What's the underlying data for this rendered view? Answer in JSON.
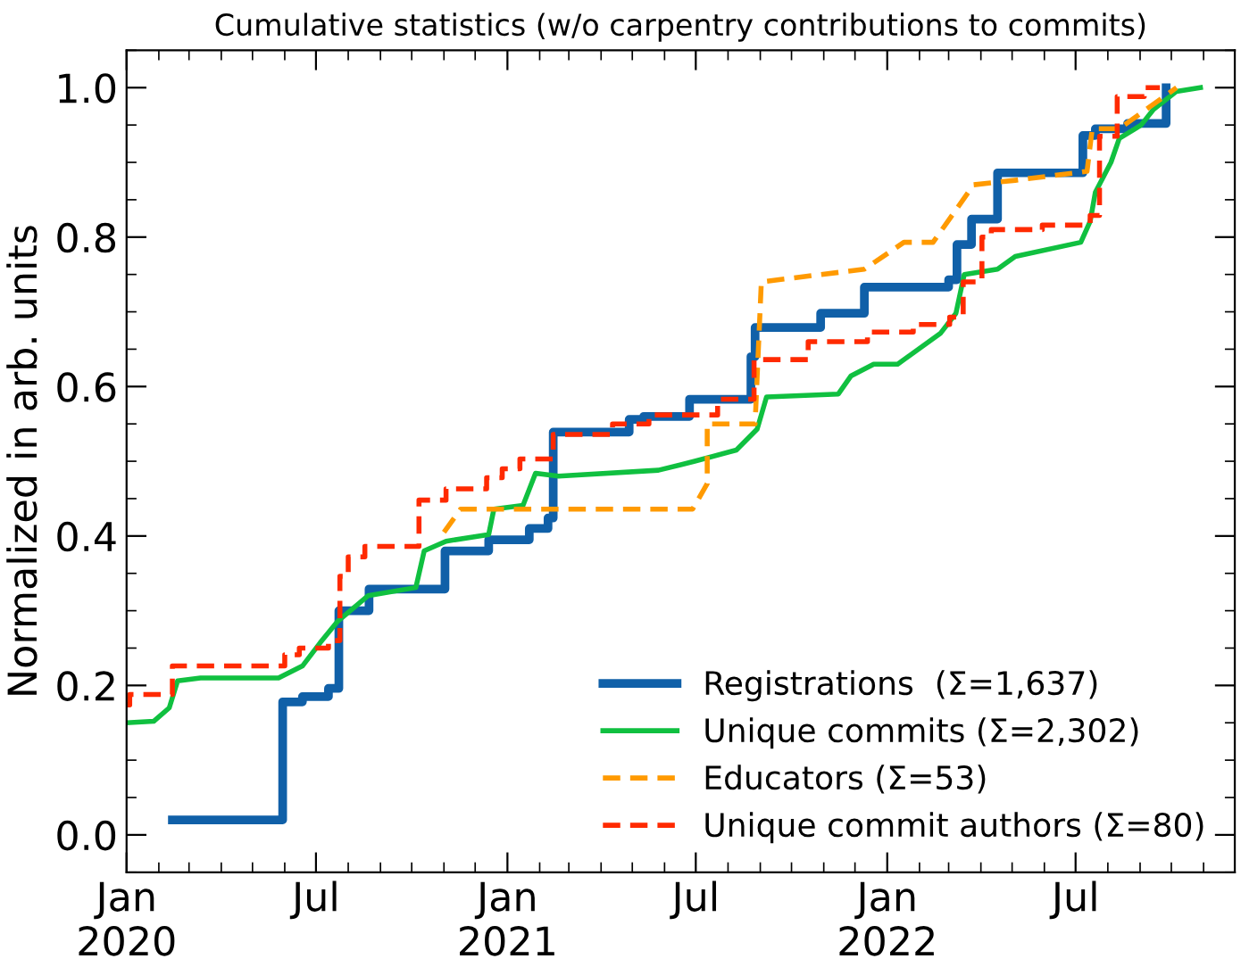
{
  "chart_data": {
    "type": "line",
    "title": "Cumulative statistics (w/o carpentry contributions to commits)",
    "ylabel": "Normalized in arb. units",
    "xlim": [
      "2020-01-01",
      "2022-12-01"
    ],
    "ylim": [
      -0.05,
      1.05
    ],
    "xticks": [
      {
        "value": "2020-01-01",
        "label": "Jan\n2020"
      },
      {
        "value": "2020-07-01",
        "label": "Jul"
      },
      {
        "value": "2021-01-01",
        "label": "Jan\n2021"
      },
      {
        "value": "2021-07-01",
        "label": "Jul"
      },
      {
        "value": "2022-01-01",
        "label": "Jan\n2022"
      },
      {
        "value": "2022-07-01",
        "label": "Jul"
      }
    ],
    "yticks": [
      {
        "value": 0,
        "label": "0.0"
      },
      {
        "value": 0.2,
        "label": "0.2"
      },
      {
        "value": 0.4,
        "label": "0.4"
      },
      {
        "value": 0.6,
        "label": "0.6"
      },
      {
        "value": 0.8,
        "label": "0.8"
      },
      {
        "value": 1,
        "label": "1.0"
      }
    ],
    "grid": false,
    "legend": "bottom right",
    "series": [
      {
        "name": "Registrations  (Σ=1,637)",
        "type": "step",
        "color": "#1060a8",
        "line_style": "solid",
        "x": [
          "2020-02-14",
          "2020-05-30",
          "2020-06-18",
          "2020-07-13",
          "2020-07-23",
          "2020-08-21",
          "2020-11-02",
          "2020-12-14",
          "2021-01-22",
          "2021-02-09",
          "2021-02-14",
          "2021-04-28",
          "2021-05-12",
          "2021-06-25",
          "2021-08-23",
          "2021-08-27",
          "2021-10-29",
          "2021-12-10",
          "2022-03-01",
          "2022-03-09",
          "2022-03-23",
          "2022-04-17",
          "2022-07-08",
          "2022-07-20",
          "2022-08-20",
          "2022-09-26"
        ],
        "values": [
          0.02,
          0.178,
          0.185,
          0.196,
          0.3,
          0.329,
          0.38,
          0.395,
          0.41,
          0.424,
          0.539,
          0.556,
          0.56,
          0.583,
          0.64,
          0.679,
          0.698,
          0.733,
          0.743,
          0.79,
          0.824,
          0.886,
          0.936,
          0.945,
          0.952,
          1.0
        ]
      },
      {
        "name": "Unique commits (Σ=2,302)",
        "color": "#10c040",
        "line_style": "solid",
        "x": [
          "2020-01-01",
          "2020-01-27",
          "2020-02-11",
          "2020-02-19",
          "2020-03-12",
          "2020-05-26",
          "2020-06-18",
          "2020-07-05",
          "2020-07-22",
          "2020-08-20",
          "2020-10-05",
          "2020-10-13",
          "2020-11-03",
          "2020-12-14",
          "2020-12-19",
          "2021-01-16",
          "2021-01-28",
          "2021-02-19",
          "2021-05-26",
          "2021-06-30",
          "2021-08-09",
          "2021-08-29",
          "2021-09-07",
          "2021-11-15",
          "2021-11-27",
          "2021-12-19",
          "2022-01-11",
          "2022-02-21",
          "2022-03-08",
          "2022-03-16",
          "2022-04-17",
          "2022-05-04",
          "2022-07-06",
          "2022-07-15",
          "2022-07-20",
          "2022-08-04",
          "2022-08-12",
          "2022-09-02",
          "2022-09-14",
          "2022-10-06",
          "2022-10-29"
        ],
        "values": [
          0.15,
          0.152,
          0.17,
          0.206,
          0.21,
          0.21,
          0.226,
          0.257,
          0.286,
          0.32,
          0.331,
          0.38,
          0.393,
          0.402,
          0.436,
          0.441,
          0.484,
          0.48,
          0.488,
          0.5,
          0.515,
          0.543,
          0.586,
          0.59,
          0.614,
          0.63,
          0.63,
          0.671,
          0.698,
          0.75,
          0.757,
          0.774,
          0.793,
          0.821,
          0.86,
          0.9,
          0.932,
          0.95,
          0.971,
          0.995,
          1.0
        ]
      },
      {
        "name": "Educators (Σ=53)",
        "color": "#ff9a00",
        "line_style": "dashed",
        "x": [
          "2020-11-01",
          "2020-11-17",
          "2021-06-28",
          "2021-07-12",
          "2021-07-12",
          "2021-08-27",
          "2021-09-02",
          "2021-12-10",
          "2022-01-17",
          "2022-02-14",
          "2022-03-25",
          "2022-05-04",
          "2022-07-12",
          "2022-07-17",
          "2022-08-12",
          "2022-10-06"
        ],
        "values": [
          0.405,
          0.436,
          0.436,
          0.47,
          0.55,
          0.55,
          0.74,
          0.757,
          0.793,
          0.793,
          0.87,
          0.876,
          0.888,
          0.945,
          0.945,
          1.0
        ]
      },
      {
        "name": "Unique commit authors (Σ=80)",
        "type": "step",
        "color": "#ff2a00",
        "line_style": "dashed",
        "x": [
          "2020-01-01",
          "2020-01-04",
          "2020-02-14",
          "2020-06-01",
          "2020-06-15",
          "2020-07-13",
          "2020-07-24",
          "2020-08-01",
          "2020-08-17",
          "2020-10-08",
          "2020-11-03",
          "2020-12-12",
          "2020-12-27",
          "2021-01-13",
          "2021-02-14",
          "2021-04-12",
          "2021-05-17",
          "2021-07-22",
          "2021-08-26",
          "2021-10-17",
          "2021-12-13",
          "2022-01-26",
          "2022-03-02",
          "2022-03-15",
          "2022-04-02",
          "2022-04-11",
          "2022-05-30",
          "2022-07-15",
          "2022-07-24",
          "2022-08-10",
          "2022-09-05",
          "2022-09-20"
        ],
        "values": [
          0.174,
          0.188,
          0.226,
          0.241,
          0.25,
          0.26,
          0.346,
          0.372,
          0.386,
          0.448,
          0.463,
          0.478,
          0.49,
          0.503,
          0.536,
          0.55,
          0.562,
          0.583,
          0.636,
          0.66,
          0.673,
          0.683,
          0.693,
          0.74,
          0.8,
          0.81,
          0.816,
          0.829,
          0.935,
          0.988,
          1.0,
          1.0
        ]
      }
    ]
  }
}
